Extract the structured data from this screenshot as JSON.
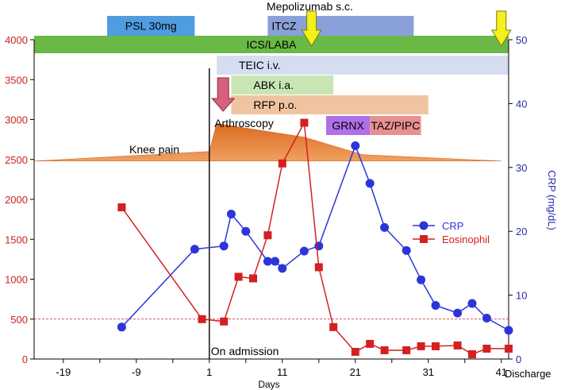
{
  "chart_data": {
    "type": "line",
    "xlabel": "Days",
    "x_ticks": [
      -19,
      -9,
      1,
      11,
      21,
      31,
      41
    ],
    "x_end_label": "Discharge",
    "xlim": [
      -23,
      42
    ],
    "y_left": {
      "ylim": [
        0,
        4000
      ],
      "ticks": [
        0,
        500,
        1000,
        1500,
        2000,
        2500,
        3000,
        3500,
        4000
      ],
      "color": "#cc2222"
    },
    "y_right": {
      "label": "CRP (mg/dL)",
      "ylim": [
        0,
        50
      ],
      "ticks": [
        0,
        10,
        20,
        30,
        40,
        50
      ],
      "color": "#2a2aaa"
    },
    "reference_line": {
      "axis": "left",
      "value": 500,
      "color": "#cc2222"
    },
    "series": [
      {
        "name": "CRP",
        "axis": "right",
        "marker": "circle",
        "color": "#2b35d8",
        "points": [
          [
            -11,
            5
          ],
          [
            -1,
            17.2
          ],
          [
            3,
            17.7
          ],
          [
            4,
            22.7
          ],
          [
            6,
            20
          ],
          [
            9,
            15.3
          ],
          [
            10,
            15.3
          ],
          [
            11,
            14.2
          ],
          [
            14,
            16.9
          ],
          [
            16,
            17.7
          ],
          [
            21,
            33.4
          ],
          [
            23,
            27.5
          ],
          [
            25,
            20.6
          ],
          [
            28,
            17
          ],
          [
            30,
            12.4
          ],
          [
            32,
            8.4
          ],
          [
            35,
            7.2
          ],
          [
            37,
            8.7
          ],
          [
            39,
            6.4
          ],
          [
            42,
            4.5
          ]
        ]
      },
      {
        "name": "Eosinophil",
        "axis": "left",
        "marker": "square",
        "color": "#d42020",
        "points": [
          [
            -11,
            1900
          ],
          [
            0,
            500
          ],
          [
            3,
            470
          ],
          [
            5,
            1030
          ],
          [
            7,
            1010
          ],
          [
            9,
            1550
          ],
          [
            11,
            2450
          ],
          [
            14,
            2960
          ],
          [
            16,
            1150
          ],
          [
            18,
            400
          ],
          [
            21,
            90
          ],
          [
            23,
            190
          ],
          [
            25,
            110
          ],
          [
            28,
            110
          ],
          [
            30,
            160
          ],
          [
            32,
            160
          ],
          [
            35,
            170
          ],
          [
            37,
            60
          ],
          [
            39,
            130
          ],
          [
            42,
            130
          ]
        ]
      }
    ],
    "legend_position": "right",
    "treatments": [
      {
        "label": "PSL 30mg",
        "x_start": -13,
        "x_end": -1,
        "color": "#4f9de0"
      },
      {
        "label": "ITCZ",
        "x_start": 9,
        "x_end": 29,
        "color": "#8aa0d8"
      },
      {
        "label": "ICS/LABA",
        "x_start": -23,
        "x_end": 42,
        "color": "#6ab845"
      },
      {
        "label": "TEIC i.v.",
        "x_start": 2,
        "x_end": 42,
        "color": "#d6ddf1"
      },
      {
        "label": "ABK i.a.",
        "x_start": 4,
        "x_end": 18,
        "color": "#c8e6b4"
      },
      {
        "label": "RFP p.o.",
        "x_start": 4,
        "x_end": 31,
        "color": "#f0c4a0"
      },
      {
        "label": "GRNX",
        "x_start": 17,
        "x_end": 23,
        "color": "#b070e8"
      },
      {
        "label": "TAZ/PIPC",
        "x_start": 23,
        "x_end": 30,
        "color": "#e89090"
      }
    ],
    "knee_pain": {
      "label": "Knee pain",
      "x_start": -23,
      "x_peak": 2,
      "x_end": 41,
      "base": 2480,
      "peak": 2950,
      "color": "#e2803a"
    },
    "arthroscopy": {
      "label": "Arthroscopy",
      "x": 3
    },
    "admission": {
      "label": "On admission",
      "x": 1
    },
    "mepolizumab": {
      "label": "Mepolizumab s.c.",
      "doses_x": [
        15,
        41
      ]
    }
  }
}
